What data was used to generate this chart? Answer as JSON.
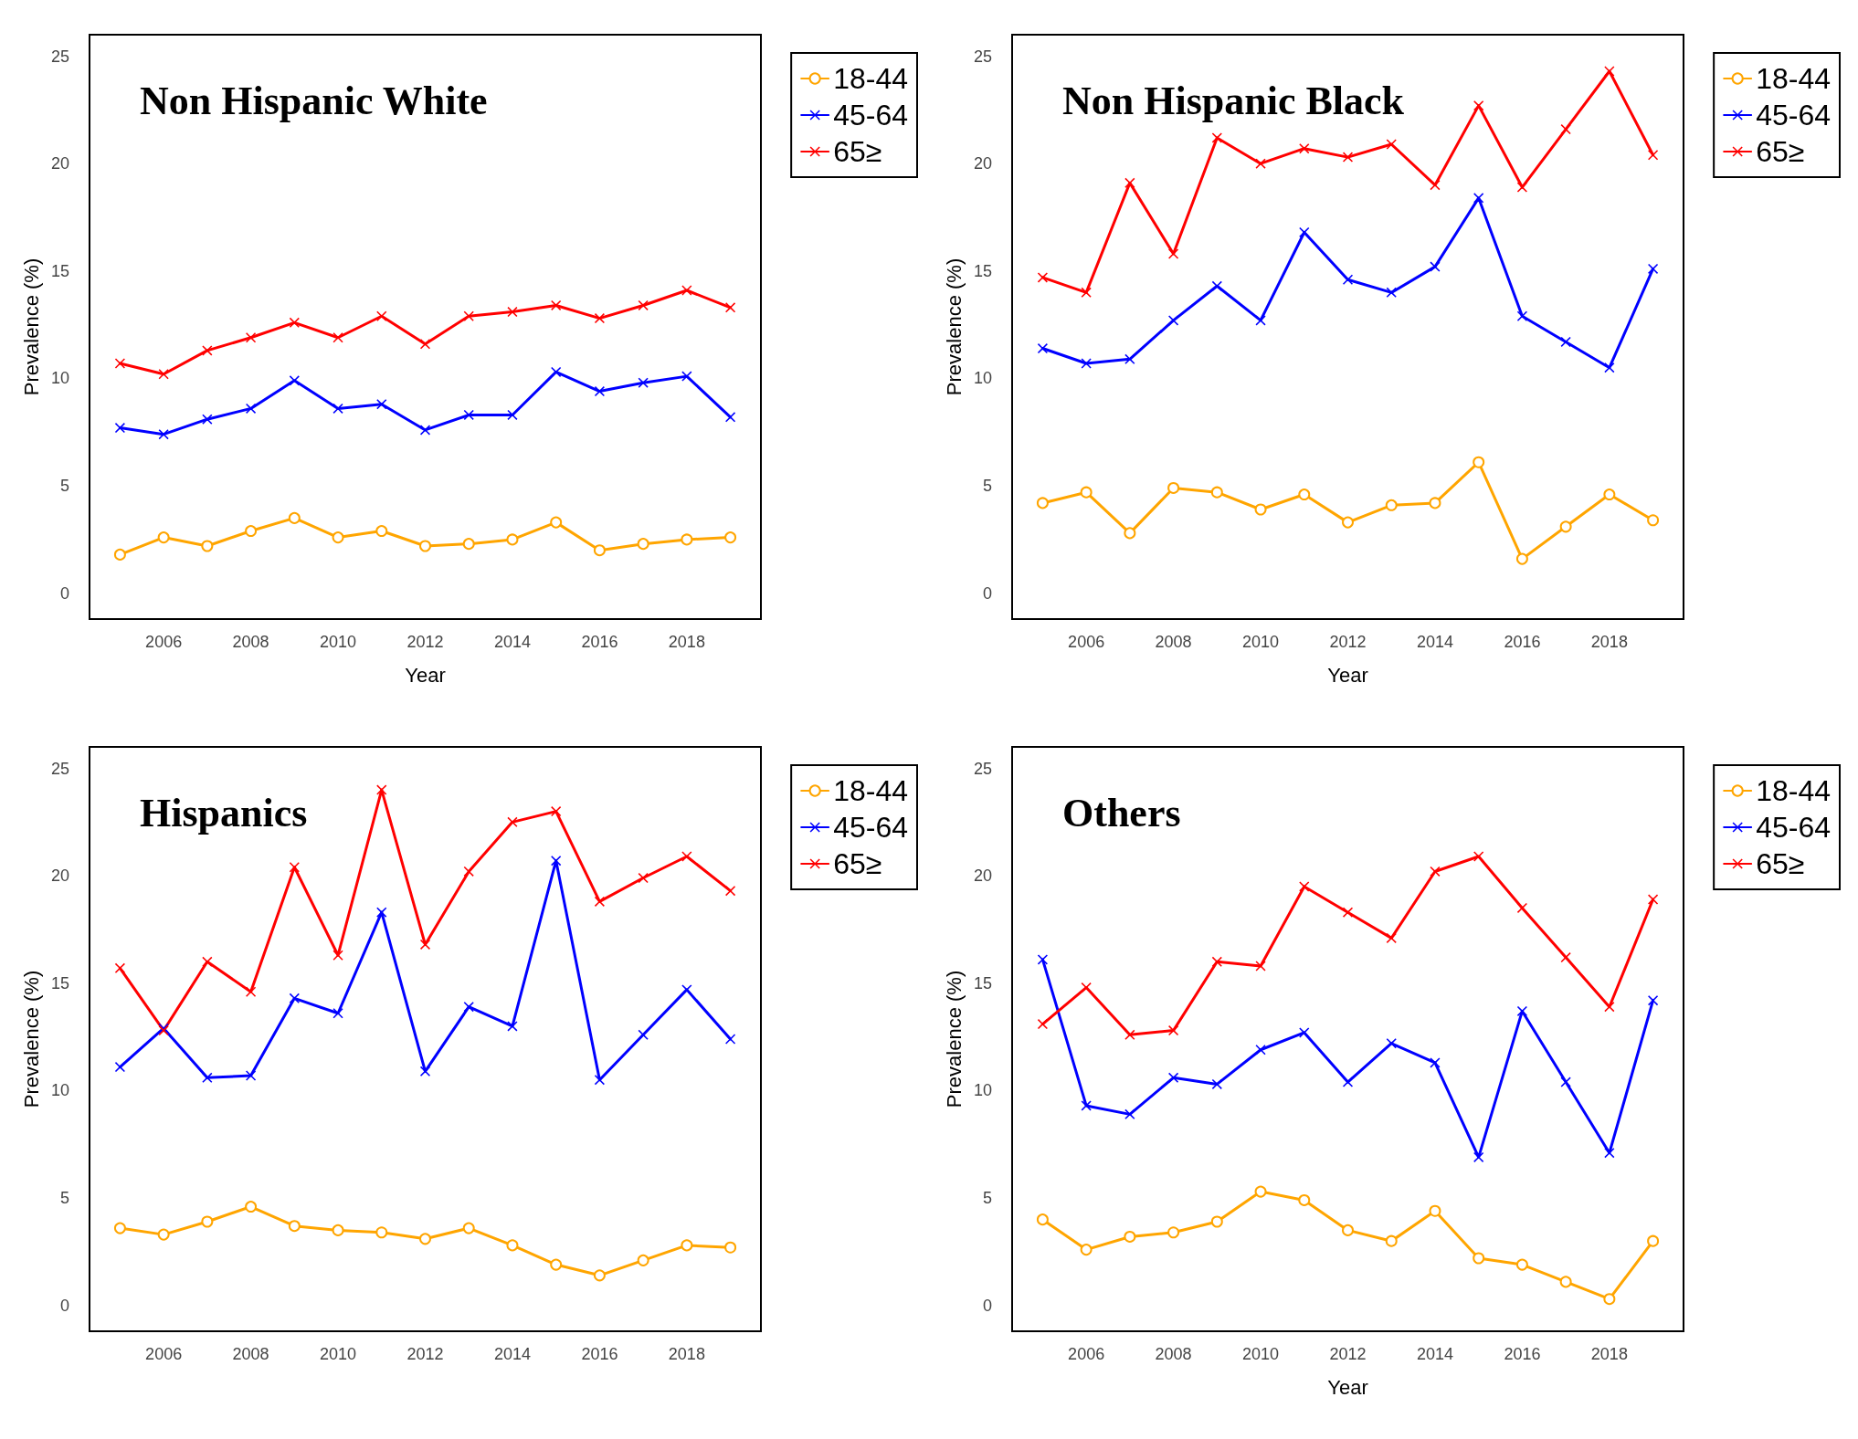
{
  "chart_data": [
    {
      "type": "line",
      "title": "Non Hispanic White",
      "xlabel": "Year",
      "ylabel": "Prevalence (%)",
      "x": [
        2005,
        2006,
        2007,
        2008,
        2009,
        2010,
        2011,
        2012,
        2013,
        2014,
        2015,
        2016,
        2017,
        2018,
        2019
      ],
      "xlim": [
        2004.3,
        2019.7
      ],
      "xticks": [
        2006,
        2008,
        2010,
        2012,
        2014,
        2016,
        2018
      ],
      "ylim": [
        -1.2,
        26
      ],
      "yticks": [
        0,
        5,
        10,
        15,
        20,
        25
      ],
      "grid": false,
      "legend": "top right",
      "line_style": "solid",
      "series": [
        {
          "name": "18-44",
          "color": "#ffa500",
          "marker": "circle",
          "values": [
            1.8,
            2.6,
            2.2,
            2.9,
            3.5,
            2.6,
            2.9,
            2.2,
            2.3,
            2.5,
            3.3,
            2.0,
            2.3,
            2.5,
            2.6
          ]
        },
        {
          "name": "45-64",
          "color": "#0000ff",
          "marker": "cross",
          "values": [
            7.7,
            7.4,
            8.1,
            8.6,
            9.9,
            8.6,
            8.8,
            7.6,
            8.3,
            8.3,
            10.3,
            9.4,
            9.8,
            10.1,
            8.2
          ]
        },
        {
          "name": "65≥",
          "color": "#ff0000",
          "marker": "cross",
          "values": [
            10.7,
            10.2,
            11.3,
            11.9,
            12.6,
            11.9,
            12.9,
            11.6,
            12.9,
            13.1,
            13.4,
            12.8,
            13.4,
            14.1,
            13.3
          ]
        }
      ]
    },
    {
      "type": "line",
      "title": "Non Hispanic Black",
      "xlabel": "Year",
      "ylabel": "Prevalence (%)",
      "x": [
        2005,
        2006,
        2007,
        2008,
        2009,
        2010,
        2011,
        2012,
        2013,
        2014,
        2015,
        2016,
        2017,
        2018,
        2019
      ],
      "xlim": [
        2004.3,
        2019.7
      ],
      "xticks": [
        2006,
        2008,
        2010,
        2012,
        2014,
        2016,
        2018
      ],
      "ylim": [
        -1.2,
        26
      ],
      "yticks": [
        0,
        5,
        10,
        15,
        20,
        25
      ],
      "grid": false,
      "legend": "top right",
      "line_style": "solid",
      "series": [
        {
          "name": "18-44",
          "color": "#ffa500",
          "marker": "circle",
          "values": [
            4.2,
            4.7,
            2.8,
            4.9,
            4.7,
            3.9,
            4.6,
            3.3,
            4.1,
            4.2,
            6.1,
            1.6,
            3.1,
            4.6,
            3.4
          ]
        },
        {
          "name": "45-64",
          "color": "#0000ff",
          "marker": "cross",
          "values": [
            11.4,
            10.7,
            10.9,
            12.7,
            14.3,
            12.7,
            16.8,
            14.6,
            14.0,
            15.2,
            18.4,
            12.9,
            11.7,
            10.5,
            15.1
          ]
        },
        {
          "name": "65≥",
          "color": "#ff0000",
          "marker": "cross",
          "values": [
            14.7,
            14.0,
            19.1,
            15.8,
            21.2,
            20.0,
            20.7,
            20.3,
            20.9,
            19.0,
            22.7,
            18.9,
            21.6,
            24.3,
            20.4
          ]
        }
      ]
    },
    {
      "type": "line",
      "title": "Hispanics",
      "ylabel": "Prevalence (%)",
      "x": [
        2005,
        2006,
        2007,
        2008,
        2009,
        2010,
        2011,
        2012,
        2013,
        2014,
        2015,
        2016,
        2017,
        2018,
        2019
      ],
      "xlim": [
        2004.3,
        2019.7
      ],
      "xticks": [
        2006,
        2008,
        2010,
        2012,
        2014,
        2016,
        2018
      ],
      "ylim": [
        -1.2,
        26
      ],
      "yticks": [
        0,
        5,
        10,
        15,
        20,
        25
      ],
      "grid": false,
      "legend": "top right",
      "line_style": "solid",
      "series": [
        {
          "name": "18-44",
          "color": "#ffa500",
          "marker": "circle",
          "values": [
            3.6,
            3.3,
            3.9,
            4.6,
            3.7,
            3.5,
            3.4,
            3.1,
            3.6,
            2.8,
            1.9,
            1.4,
            2.1,
            2.8,
            2.7
          ]
        },
        {
          "name": "45-64",
          "color": "#0000ff",
          "marker": "cross",
          "values": [
            11.1,
            12.9,
            10.6,
            10.7,
            14.3,
            13.6,
            18.3,
            10.9,
            13.9,
            13.0,
            20.7,
            10.5,
            12.6,
            14.7,
            12.4
          ]
        },
        {
          "name": "65≥",
          "color": "#ff0000",
          "marker": "cross",
          "values": [
            15.7,
            12.8,
            16.0,
            14.6,
            20.4,
            16.3,
            24.0,
            16.8,
            20.2,
            22.5,
            23.0,
            18.8,
            19.9,
            20.9,
            19.3
          ]
        }
      ]
    },
    {
      "type": "line",
      "title": "Others",
      "xlabel": "Year",
      "ylabel": "Prevalence (%)",
      "x": [
        2005,
        2006,
        2007,
        2008,
        2009,
        2010,
        2011,
        2012,
        2013,
        2014,
        2015,
        2016,
        2017,
        2018,
        2019
      ],
      "xlim": [
        2004.3,
        2019.7
      ],
      "xticks": [
        2006,
        2008,
        2010,
        2012,
        2014,
        2016,
        2018
      ],
      "ylim": [
        -1.2,
        26
      ],
      "yticks": [
        0,
        5,
        10,
        15,
        20,
        25
      ],
      "grid": false,
      "legend": "top right",
      "line_style": "solid",
      "series": [
        {
          "name": "18-44",
          "color": "#ffa500",
          "marker": "circle",
          "values": [
            4.0,
            2.6,
            3.2,
            3.4,
            3.9,
            5.3,
            4.9,
            3.5,
            3.0,
            4.4,
            2.2,
            1.9,
            1.1,
            0.3,
            3.0
          ]
        },
        {
          "name": "45-64",
          "color": "#0000ff",
          "marker": "cross",
          "values": [
            16.1,
            9.3,
            8.9,
            10.6,
            10.3,
            11.9,
            12.7,
            10.4,
            12.2,
            11.3,
            6.9,
            13.7,
            10.4,
            7.1,
            14.2
          ]
        },
        {
          "name": "65≥",
          "color": "#ff0000",
          "marker": "cross",
          "values": [
            13.1,
            14.8,
            12.6,
            12.8,
            16.0,
            15.8,
            19.5,
            18.3,
            17.1,
            20.2,
            20.9,
            18.5,
            16.2,
            13.9,
            18.9
          ]
        }
      ]
    }
  ]
}
